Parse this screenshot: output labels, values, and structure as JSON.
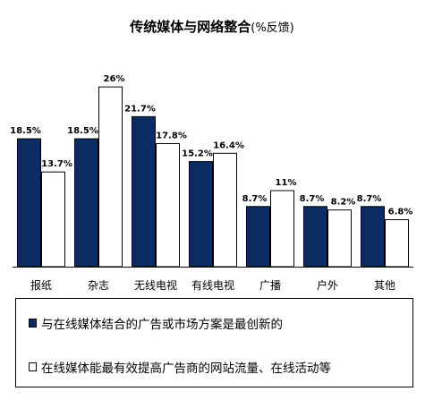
{
  "title": {
    "main": "传统媒体与网络整合",
    "sub": "(%反馈)"
  },
  "colors": {
    "series1": "#0c2b5e",
    "series2": "#ffffff",
    "stroke": "#000000"
  },
  "chart_data": {
    "type": "bar",
    "title": "传统媒体与网络整合(%反馈)",
    "categories": [
      "报纸",
      "杂志",
      "无线电视",
      "有线电视",
      "广播",
      "户外",
      "其他"
    ],
    "series": [
      {
        "name": "与在线媒体结合的广告或市场方案是最创新的",
        "values": [
          18.5,
          18.5,
          21.7,
          15.2,
          8.7,
          8.7,
          8.7
        ],
        "labels": [
          "18.5%",
          "18.5%",
          "21.7%",
          "15.2%",
          "8.7%",
          "8.7%",
          "8.7%"
        ]
      },
      {
        "name": "在线媒体能最有效提高广告商的网站流量、在线活动等",
        "values": [
          13.7,
          26,
          17.8,
          16.4,
          11,
          8.2,
          6.8
        ],
        "labels": [
          "13.7%",
          "26%",
          "17.8%",
          "16.4%",
          "11%",
          "8.2%",
          "6.8%"
        ]
      }
    ],
    "ylim": [
      0,
      27.7
    ],
    "grid": false,
    "legend_position": "bottom"
  }
}
